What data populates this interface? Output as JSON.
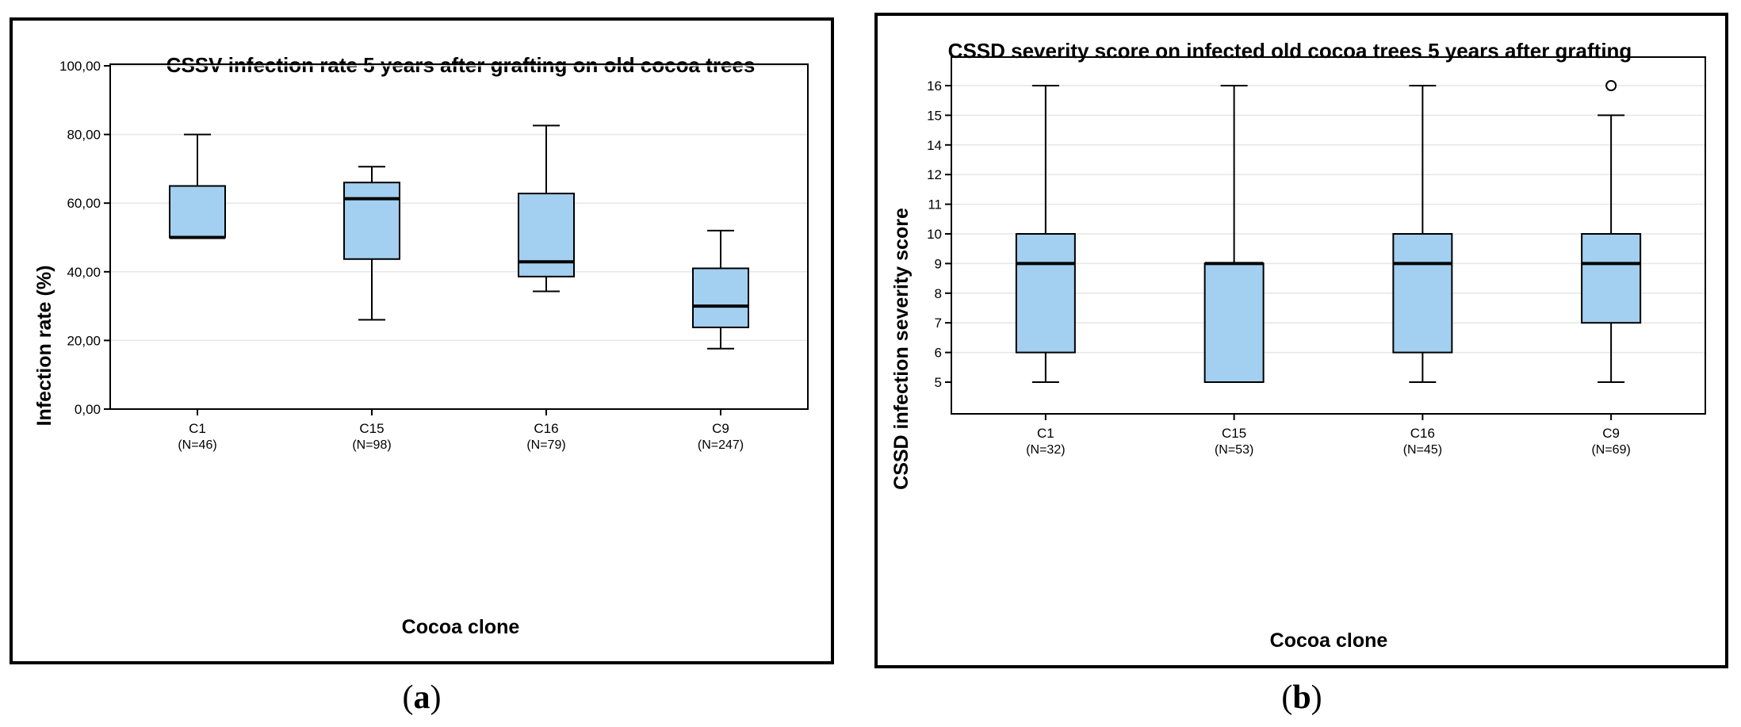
{
  "colors": {
    "box_fill": "#a3cff0",
    "grid": "#e6e6e6",
    "frame": "#000000"
  },
  "captions": {
    "a": "a",
    "b": "b"
  },
  "chart_data": [
    {
      "type": "box",
      "title": "CSSV infection rate 5 years after grafting on old cocoa trees",
      "xlabel": "Cocoa clone",
      "ylabel": "Infection rate (%)",
      "ylim": [
        0,
        100
      ],
      "yticks": [
        0,
        20,
        40,
        60,
        80,
        100
      ],
      "ytick_labels": [
        "0,00",
        "20,00",
        "40,00",
        "60,00",
        "80,00",
        "100,00"
      ],
      "grid": true,
      "categories": [
        "C1",
        "C15",
        "C16",
        "C9"
      ],
      "n_labels": [
        "(N=46)",
        "(N=98)",
        "(N=79)",
        "(N=247)"
      ],
      "boxes": [
        {
          "min": 50,
          "q1": 50,
          "median": 50,
          "q3": 65,
          "max": 80
        },
        {
          "min": 26,
          "q1": 43.7,
          "median": 61.3,
          "q3": 66,
          "max": 70.6
        },
        {
          "min": 34.3,
          "q1": 38.6,
          "median": 42.9,
          "q3": 62.8,
          "max": 82.6
        },
        {
          "min": 17.6,
          "q1": 23.8,
          "median": 30,
          "q3": 41,
          "max": 52
        }
      ],
      "outliers": [
        [],
        [],
        [],
        []
      ]
    },
    {
      "type": "box",
      "title": "CSSD severity score on infected old cocoa trees 5 years after grafting",
      "xlabel": "Cocoa clone",
      "ylabel": "CSSD infection severity score",
      "ytick_labels": [
        "5",
        "6",
        "7",
        "8",
        "9",
        "10",
        "11",
        "12",
        "14",
        "15",
        "16"
      ],
      "grid": true,
      "categories": [
        "C1",
        "C15",
        "C16",
        "C9"
      ],
      "n_labels": [
        "(N=32)",
        "(N=53)",
        "(N=45)",
        "(N=69)"
      ],
      "boxes": [
        {
          "min": 5,
          "q1": 6,
          "median": 9,
          "q3": 10,
          "max": 16
        },
        {
          "min": 5,
          "q1": 5,
          "median": 9,
          "q3": 9,
          "max": 16
        },
        {
          "min": 5,
          "q1": 6,
          "median": 9,
          "q3": 10,
          "max": 16
        },
        {
          "min": 5,
          "q1": 7,
          "median": 9,
          "q3": 10,
          "max": 15
        }
      ],
      "outliers": [
        [],
        [],
        [],
        [
          16
        ]
      ]
    }
  ]
}
